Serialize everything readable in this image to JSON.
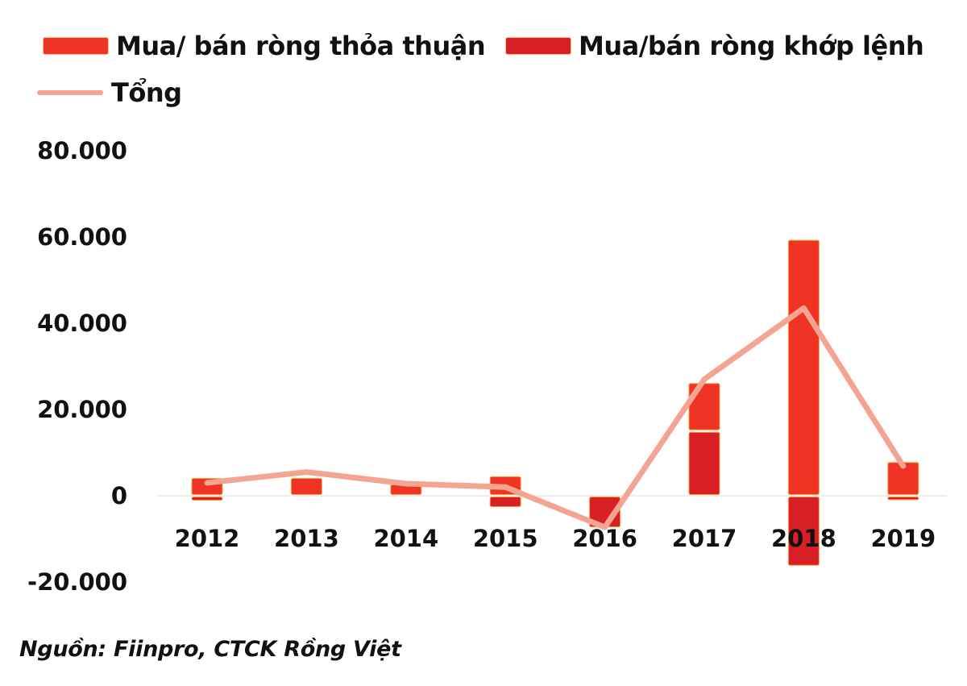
{
  "legend": {
    "items": [
      {
        "label": "Mua/ bán ròng thỏa thuận",
        "type": "bar",
        "color": "#ef3324"
      },
      {
        "label": "Mua/bán ròng khớp lệnh",
        "type": "bar",
        "color": "#d91f26"
      },
      {
        "label": "Tổng",
        "type": "line",
        "color": "#f4a592"
      }
    ]
  },
  "source": "Nguồn: Fiinpro, CTCK Rồng Việt",
  "chart_data": {
    "type": "bar",
    "subtype": "stacked bar with line overlay",
    "title": "",
    "xlabel": "",
    "ylabel": "",
    "categories": [
      "2012",
      "2013",
      "2014",
      "2015",
      "2016",
      "2017",
      "2018",
      "2019"
    ],
    "series": [
      {
        "name": "Mua/ bán ròng thỏa thuận",
        "type": "bar",
        "color": "#ef3324",
        "values": [
          4300,
          4300,
          2800,
          4700,
          0,
          11300,
          59500,
          8000
        ]
      },
      {
        "name": "Mua/bán ròng khớp lệnh",
        "type": "bar",
        "color": "#d91f26",
        "values": [
          -1300,
          0,
          0,
          -2800,
          -7500,
          15000,
          -16400,
          -1200
        ]
      },
      {
        "name": "Tổng",
        "type": "line",
        "color": "#f4a592",
        "values": [
          3000,
          5500,
          2800,
          2000,
          -7300,
          27000,
          43500,
          6900
        ]
      }
    ],
    "yticks": [
      "80.000",
      "60.000",
      "40.000",
      "20.000",
      "0",
      "-20.000"
    ],
    "ytick_values": [
      80000,
      60000,
      40000,
      20000,
      0,
      -20000
    ],
    "ylim": [
      -20000,
      80000
    ],
    "grid": false,
    "zero_line": true,
    "legend_position": "top"
  }
}
